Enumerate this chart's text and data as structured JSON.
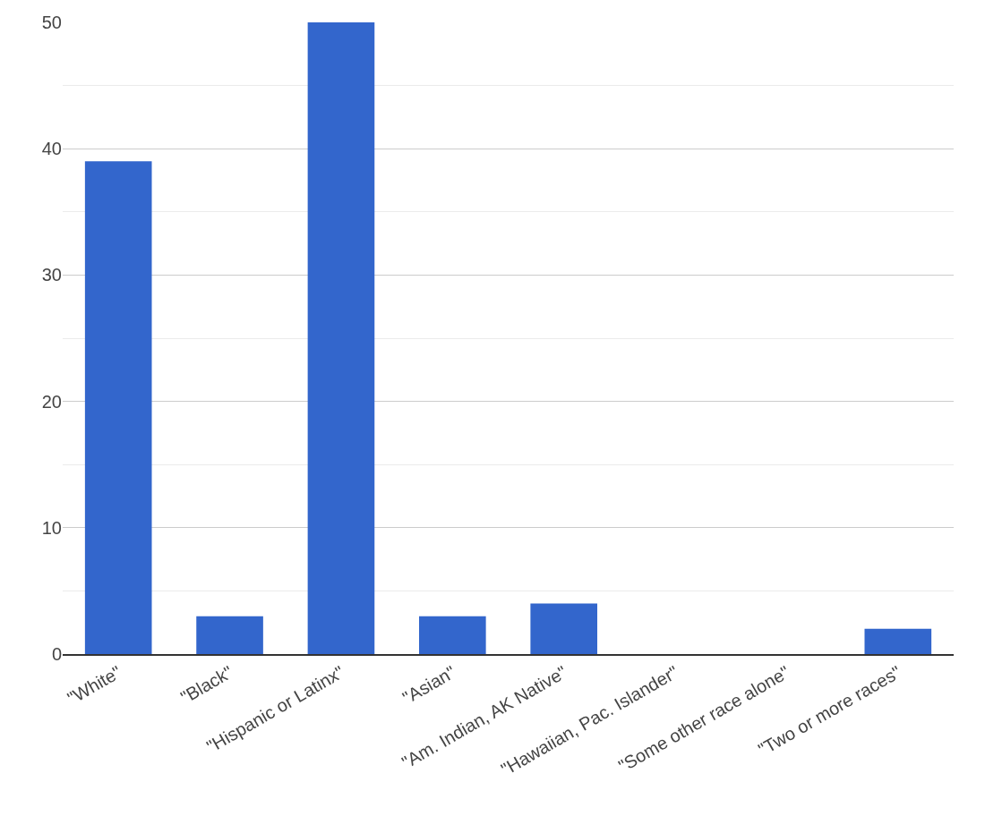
{
  "chart_data": {
    "type": "bar",
    "categories": [
      "\"White\"",
      "\"Black\"",
      "\"Hispanic or Latinx\"",
      "\"Asian\"",
      "\"Am. Indian, AK Native\"",
      "\"Hawaiian, Pac. Islander\"",
      "\"Some other race alone\"",
      "\"Two or more races\""
    ],
    "values": [
      39,
      3,
      50,
      3,
      4,
      0,
      0,
      2
    ],
    "color": "#3366cc",
    "ylim": [
      0,
      50
    ],
    "yticks": [
      0,
      {
        "value": 5,
        "label": null
      },
      10,
      {
        "value": 15,
        "label": null
      },
      20,
      {
        "value": 25,
        "label": null
      },
      30,
      {
        "value": 35,
        "label": null
      },
      40,
      {
        "value": 45,
        "label": null
      },
      50
    ],
    "grid": "y"
  }
}
